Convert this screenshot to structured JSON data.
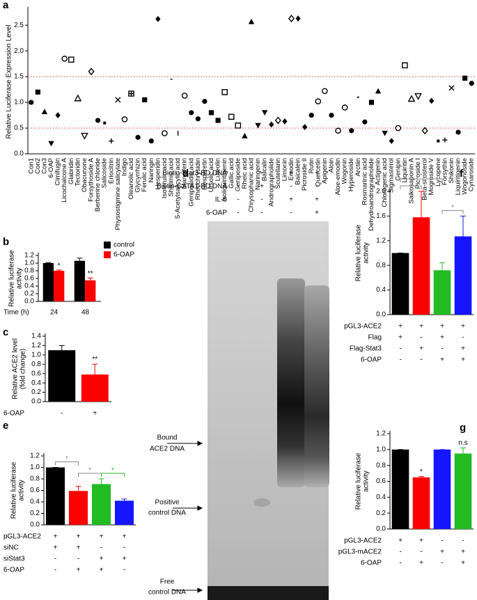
{
  "chart_data": [
    {
      "label": "a",
      "type": "scatter",
      "y_label": [
        "Relative Luciferase Expression Level"
      ],
      "categories": [
        "Con1",
        "Con2",
        "Con3",
        "6-OAP",
        "Cimifugin",
        "Licochalcone A",
        "Glabridin",
        "Tectoridin",
        "Obacunone",
        "Forsythoside A",
        "Berberine chloride",
        "Salicoside",
        "Eriocitrin",
        "Physostigmine salicylate",
        "Indigo",
        "Oleanolic acid",
        "Glycyrrhizin",
        "Ferulic acid",
        "Naringin",
        "Hesperidin",
        "Isoferulic acid",
        "Shikimic acid",
        "5-Acetylsalicylic acid",
        "Mangiferin",
        "Geniposidic acid",
        "Rheochrysidin",
        "Hesperetin",
        "Ursolic acid",
        "Luteolin",
        "Isoliquiritigenin",
        "Gallic acid",
        "Geniposide",
        "Rheic acid",
        "Chrysophanic acid",
        "Naringenin",
        "Baicalin",
        "Andrographolide",
        "Scutellarin",
        "Limonin",
        "Emodin",
        "Baicalein",
        "Picroside II",
        "Rutin",
        "Quercetin",
        "Apigenin",
        "Aloin",
        "Aloe-emodin",
        "Wogonin",
        "Hyperoside",
        "Arctiin",
        "Rosmarinic acid",
        "Dehydroandrographolide",
        "Actigenin",
        "Chlorogenic acid",
        "Sigmasterol",
        "Genipin",
        "Liquiritin",
        "Saikosaponin A",
        "Picroside I",
        "Beta-sitosterol",
        "Mogroside V",
        "Lycopene",
        "Forsythin",
        "Shikonin",
        "Liquiritigenin",
        "Wogonoside",
        "Cynaroside"
      ],
      "values": [
        1.0,
        1.2,
        0.82,
        0.2,
        0.75,
        1.85,
        1.83,
        1.08,
        0.35,
        1.6,
        0.65,
        0.6,
        0.25,
        1.05,
        0.67,
        1.17,
        0.32,
        1.05,
        0.25,
        2.62,
        0.4,
        1.45,
        0.4,
        1.13,
        0.8,
        0.68,
        1.02,
        0.8,
        0.65,
        1.2,
        0.72,
        0.55,
        0.35,
        2.57,
        0.55,
        0.8,
        0.57,
        0.65,
        0.63,
        2.63,
        2.63,
        0.52,
        0.75,
        1.02,
        1.22,
        0.75,
        0.45,
        0.9,
        0.45,
        1.1,
        0.62,
        1.0,
        1.22,
        0.4,
        0.25,
        0.5,
        1.72,
        1.07,
        1.12,
        0.45,
        1.03,
        0.25,
        0.27,
        1.28,
        0.42,
        1.47,
        1.37
      ],
      "markers": [
        "circle",
        "square",
        "triangle",
        "triangle-down",
        "diamond",
        "circle-open",
        "square-open",
        "triangle-open",
        "triangle-down-open",
        "diamond-open",
        "circle",
        "star",
        "plus",
        "cross",
        "circle-dot",
        "square-cross",
        "circle",
        "square",
        "circle",
        "diamond",
        "circle-open",
        "dash",
        "bar",
        "circle-open",
        "circle",
        "circle",
        "circle",
        "square",
        "square",
        "square-open",
        "square-open",
        "square-open",
        "triangle",
        "triangle",
        "triangle-down",
        "triangle-down",
        "diamond",
        "diamond-open",
        "diamond",
        "diamond-open",
        "diamond",
        "diamond",
        "circle",
        "circle-open",
        "circle-open",
        "circle",
        "circle-open",
        "circle-open",
        "circle",
        "dot",
        "circle",
        "square",
        "triangle",
        "triangle-down",
        "diamond",
        "circle-open",
        "square-open",
        "triangle-open",
        "triangle-down-open",
        "diamond-open",
        "diamond",
        "star",
        "plus",
        "cross",
        "circle",
        "square",
        "circle"
      ],
      "color": "#000000",
      "reference_lines": [
        1.5,
        0.5
      ],
      "reference_color": "#e03a2f",
      "ylim": [
        0,
        2.8
      ],
      "yticks": [
        {
          "value": 0,
          "label": "0.0"
        },
        0.5,
        {
          "value": 1,
          "label": "1.0"
        },
        1.5,
        {
          "value": 2,
          "label": "2.0"
        },
        2.5
      ]
    },
    {
      "label": "b",
      "type": "bar",
      "y_label": [
        "Relative luciferase",
        "activity"
      ],
      "x_label": "Time (h)",
      "categories": [
        "24",
        "48"
      ],
      "series": [
        {
          "name": "control",
          "color": "#000000",
          "values": [
            1.0,
            1.06
          ],
          "errors": [
            0.01,
            0.07
          ]
        },
        {
          "name": "6-OAP",
          "color": "#ff0000",
          "values": [
            0.8,
            0.55
          ],
          "errors": [
            0.02,
            0.06
          ],
          "significance": [
            "*",
            "**"
          ]
        }
      ],
      "legend": "top-right",
      "ylim": [
        0,
        1.2
      ],
      "yticks": [
        {
          "value": 0,
          "label": "0.0"
        },
        0.2,
        0.4,
        0.6,
        0.8,
        {
          "value": 1,
          "label": "1.0"
        },
        1.2
      ]
    },
    {
      "label": "c",
      "type": "bar",
      "y_label": [
        "Relative ACE2 level",
        "(fold change)"
      ],
      "values": [
        1.1,
        0.58
      ],
      "errors": [
        0.1,
        0.22
      ],
      "colors": [
        "#000000",
        "#ff0000"
      ],
      "significance": [
        null,
        "**"
      ],
      "conditions": [
        {
          "name": "6-OAP",
          "values": [
            "-",
            "+"
          ]
        }
      ],
      "ylim": [
        0,
        1.4
      ],
      "yticks": [
        {
          "value": 0,
          "label": "0.0"
        },
        0.2,
        0.4,
        0.6,
        0.8,
        {
          "value": 1,
          "label": "1.0"
        },
        1.2,
        1.4
      ]
    },
    {
      "label": "e",
      "type": "bar",
      "y_label": [
        "Relative luciferase",
        "activity"
      ],
      "values": [
        1.0,
        0.59,
        0.71,
        0.42
      ],
      "errors": [
        0,
        0.08,
        0.09,
        0.03
      ],
      "colors": [
        "#000000",
        "#ff0000",
        "#22bb22",
        "#1515ff"
      ],
      "comparisons": [
        {
          "text": "*",
          "color": "#888888"
        },
        {
          "text": "*",
          "color": "#888888"
        },
        {
          "text": "*",
          "color": "#22bb22"
        }
      ],
      "conditions": [
        {
          "name": "pGL3-ACE2",
          "values": [
            "+",
            "+",
            "+",
            "+"
          ]
        },
        {
          "name": "siNC",
          "values": [
            "+",
            "+",
            "-",
            "-"
          ]
        },
        {
          "name": "siStat3",
          "values": [
            "-",
            "-",
            "+",
            "+"
          ]
        },
        {
          "name": "6-OAP",
          "values": [
            "-",
            "+",
            "+",
            "-"
          ]
        }
      ],
      "ylim": [
        0,
        1.2
      ],
      "yticks": [
        {
          "value": 0,
          "label": "0.0"
        },
        0.2,
        0.4,
        0.6,
        0.8,
        {
          "value": 1,
          "label": "1.0"
        },
        1.2
      ]
    },
    {
      "label": "f",
      "type": "bar",
      "y_label": [
        "Relative luciferase",
        "activity"
      ],
      "values": [
        1.0,
        1.58,
        0.72,
        1.27
      ],
      "errors": [
        0,
        0.42,
        0.12,
        0.33
      ],
      "colors": [
        "#000000",
        "#ff0000",
        "#22bb22",
        "#1515ff"
      ],
      "comparisons": [
        {
          "text": "*",
          "color": "#888888"
        },
        {
          "text": "*",
          "color": "#888888"
        },
        {
          "text": "*",
          "color": "#888888"
        }
      ],
      "conditions": [
        {
          "name": "pGL3-ACE2",
          "values": [
            "+",
            "+",
            "+",
            "+"
          ]
        },
        {
          "name": "Flag",
          "values": [
            "+",
            "-",
            "+",
            "-"
          ]
        },
        {
          "name": "Flag-Stat3",
          "values": [
            "-",
            "+",
            "-",
            "+"
          ]
        },
        {
          "name": "6-OAP",
          "values": [
            "-",
            "-",
            "+",
            "+"
          ]
        }
      ],
      "ylim": [
        0,
        2.0
      ],
      "yticks": [
        {
          "value": 0,
          "label": "0.0"
        },
        0.4,
        0.8,
        1.2,
        1.6,
        {
          "value": 2,
          "label": "2.0"
        }
      ]
    },
    {
      "label": "g",
      "type": "bar",
      "y_label": [
        "Relative luciferase",
        "activity"
      ],
      "values": [
        1.0,
        0.65,
        1.0,
        0.95
      ],
      "errors": [
        0,
        0.01,
        0,
        0.07
      ],
      "colors": [
        "#000000",
        "#ff0000",
        "#1515ff",
        "#22bb22"
      ],
      "significance": [
        null,
        "*",
        null,
        "n.s"
      ],
      "conditions": [
        {
          "name": "pGL3-ACE2",
          "values": [
            "+",
            "+",
            "-",
            "-"
          ]
        },
        {
          "name": "pGL3-mACE2",
          "values": [
            "-",
            "-",
            "+",
            "+"
          ]
        },
        {
          "name": "6-OAP",
          "values": [
            "-",
            "+",
            "-",
            "+"
          ]
        }
      ],
      "ylim": [
        0,
        1.2
      ],
      "yticks": [
        {
          "value": 0,
          "label": "0.0"
        },
        0.2,
        0.4,
        0.6,
        0.8,
        {
          "value": 1,
          "label": "1.0"
        },
        1.2
      ]
    }
  ],
  "gel": {
    "label": "d",
    "conditions": [
      {
        "name": "Biotin-Stat3-BD DNA",
        "values": [
          "-",
          "-",
          "+",
          "+"
        ]
      },
      {
        "name": "Biotin-GATA1-BD DNA",
        "values": [
          "-",
          "+",
          "-",
          "-"
        ]
      },
      {
        "name": "IL-6",
        "values": [
          "-",
          "-",
          "+",
          "+"
        ]
      },
      {
        "name": "6-OAP",
        "values": [
          "-",
          "-",
          "-",
          "+"
        ]
      }
    ],
    "bands": [
      [
        "Bound",
        "ACE2 DNA"
      ],
      [
        "Positive",
        "control DNA"
      ],
      [
        "Free",
        "control DNA"
      ]
    ]
  }
}
